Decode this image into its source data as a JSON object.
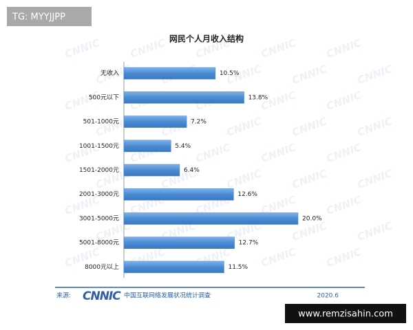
{
  "chart_data": {
    "type": "bar",
    "orientation": "horizontal",
    "title": "网民个人月收入结构",
    "categories": [
      "无收入",
      "500元以下",
      "501-1000元",
      "1001-1500元",
      "1501-2000元",
      "2001-3000元",
      "3001-5000元",
      "5001-8000元",
      "8000元以上"
    ],
    "values": [
      10.5,
      13.8,
      7.2,
      5.4,
      6.4,
      12.6,
      20.0,
      12.7,
      11.5
    ],
    "value_labels": [
      "10.5%",
      "13.8%",
      "7.2%",
      "5.4%",
      "6.4%",
      "12.6%",
      "20.0%",
      "12.7%",
      "11.5%"
    ],
    "color": "#4a8bd4",
    "watermark": "CNNIC",
    "source_label": "来源:",
    "source_logo": "CNNIC",
    "source_name": "中国互联网络发展状况统计调查",
    "date": "2020.6"
  },
  "overlay": {
    "tag": "TG: MYYJJPP",
    "site": "www.remzisahin.com"
  }
}
